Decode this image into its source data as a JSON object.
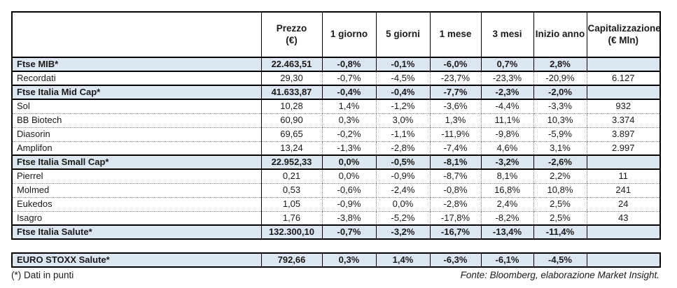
{
  "header": {
    "columns": [
      {
        "id": "name",
        "label": ""
      },
      {
        "id": "prezzo",
        "label": "Prezzo\n(€)"
      },
      {
        "id": "g1",
        "label": "1 giorno"
      },
      {
        "id": "g5",
        "label": "5 giorni"
      },
      {
        "id": "m1",
        "label": "1 mese"
      },
      {
        "id": "m3",
        "label": "3 mesi"
      },
      {
        "id": "ytd",
        "label": "Inizio anno"
      },
      {
        "id": "cap",
        "label": "Capitalizzazione\n(€ Mln)"
      }
    ]
  },
  "main_table": {
    "rows": [
      {
        "type": "index",
        "cells": [
          "Ftse MIB*",
          "22.463,51",
          "-0,8%",
          "-0,1%",
          "-6,0%",
          "0,7%",
          "2,8%",
          ""
        ]
      },
      {
        "type": "company",
        "cells": [
          "Recordati",
          "29,30",
          "-0,7%",
          "-4,5%",
          "-23,7%",
          "-23,3%",
          "-20,9%",
          "6.127"
        ]
      },
      {
        "type": "index",
        "cells": [
          "Ftse Italia Mid Cap*",
          "41.633,87",
          "-0,4%",
          "-0,4%",
          "-7,7%",
          "-2,3%",
          "-2,0%",
          ""
        ]
      },
      {
        "type": "company",
        "cells": [
          "Sol",
          "10,28",
          "1,4%",
          "-1,2%",
          "-3,6%",
          "-4,4%",
          "-3,3%",
          "932"
        ]
      },
      {
        "type": "company",
        "cells": [
          "BB Biotech",
          "60,90",
          "0,3%",
          "3,0%",
          "1,3%",
          "11,1%",
          "10,3%",
          "3.374"
        ]
      },
      {
        "type": "company",
        "cells": [
          "Diasorin",
          "69,65",
          "-0,2%",
          "-1,1%",
          "-11,9%",
          "-9,8%",
          "-5,9%",
          "3.897"
        ]
      },
      {
        "type": "company",
        "cells": [
          "Amplifon",
          "13,24",
          "-1,3%",
          "-2,8%",
          "-7,4%",
          "4,6%",
          "3,1%",
          "2.997"
        ]
      },
      {
        "type": "index",
        "cells": [
          "Ftse Italia Small Cap*",
          "22.952,33",
          "0,0%",
          "-0,5%",
          "-8,1%",
          "-3,2%",
          "-2,6%",
          ""
        ]
      },
      {
        "type": "company",
        "cells": [
          "Pierrel",
          "0,21",
          "0,0%",
          "-0,9%",
          "-8,7%",
          "8,1%",
          "2,2%",
          "11"
        ]
      },
      {
        "type": "company",
        "cells": [
          "Molmed",
          "0,53",
          "-0,6%",
          "-2,4%",
          "-0,8%",
          "16,8%",
          "10,8%",
          "241"
        ]
      },
      {
        "type": "company",
        "cells": [
          "Eukedos",
          "1,05",
          "-0,9%",
          "0,0%",
          "-2,8%",
          "2,4%",
          "2,5%",
          "24"
        ]
      },
      {
        "type": "company",
        "cells": [
          "Isagro",
          "1,76",
          "-3,8%",
          "-5,2%",
          "-17,8%",
          "-8,2%",
          "2,5%",
          "43"
        ]
      },
      {
        "type": "index",
        "cells": [
          "Ftse Italia Salute*",
          "132.300,10",
          "-0,7%",
          "-3,2%",
          "-16,7%",
          "-13,4%",
          "-11,4%",
          ""
        ]
      }
    ]
  },
  "euro_table": {
    "rows": [
      {
        "type": "index",
        "cells": [
          "EURO STOXX Salute*",
          "792,66",
          "0,3%",
          "1,4%",
          "-6,3%",
          "-6,1%",
          "-4,5%",
          ""
        ]
      }
    ]
  },
  "footer": {
    "left": "(*) Dati in punti",
    "right": "Fonte: Bloomberg, elaborazione Market Insight."
  },
  "colors": {
    "index_row_bg": "#dce6f1",
    "table_border": "#000000",
    "dotted_divider": "#8a8a8a"
  }
}
